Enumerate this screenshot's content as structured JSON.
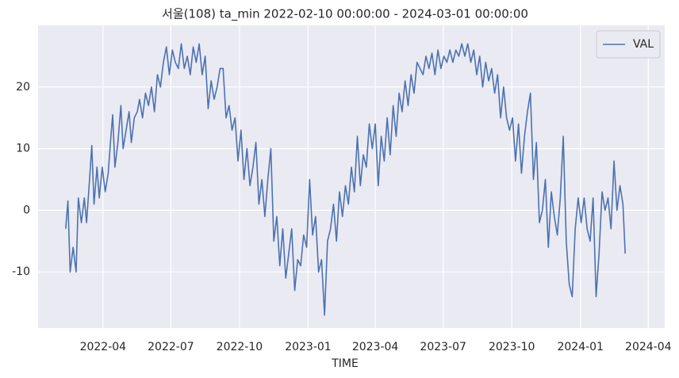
{
  "chart_data": {
    "type": "line",
    "title": "서울(108) ta_min 2022-02-10 00:00:00 - 2024-03-01 00:00:00",
    "x_label": "TIME",
    "x": [
      "2022-02-10",
      "2022-02-13",
      "2022-02-16",
      "2022-02-20",
      "2022-02-24",
      "2022-02-27",
      "2022-03-03",
      "2022-03-07",
      "2022-03-10",
      "2022-03-14",
      "2022-03-17",
      "2022-03-20",
      "2022-03-24",
      "2022-03-27",
      "2022-03-31",
      "2022-04-04",
      "2022-04-08",
      "2022-04-11",
      "2022-04-14",
      "2022-04-17",
      "2022-04-21",
      "2022-04-25",
      "2022-04-28",
      "2022-05-02",
      "2022-05-06",
      "2022-05-09",
      "2022-05-13",
      "2022-05-17",
      "2022-05-20",
      "2022-05-24",
      "2022-05-28",
      "2022-06-01",
      "2022-06-05",
      "2022-06-09",
      "2022-06-13",
      "2022-06-17",
      "2022-06-21",
      "2022-06-25",
      "2022-06-29",
      "2022-07-03",
      "2022-07-07",
      "2022-07-11",
      "2022-07-15",
      "2022-07-19",
      "2022-07-23",
      "2022-07-27",
      "2022-07-31",
      "2022-08-04",
      "2022-08-08",
      "2022-08-12",
      "2022-08-16",
      "2022-08-20",
      "2022-08-24",
      "2022-08-28",
      "2022-09-01",
      "2022-09-05",
      "2022-09-09",
      "2022-09-13",
      "2022-09-17",
      "2022-09-21",
      "2022-09-25",
      "2022-09-29",
      "2022-10-03",
      "2022-10-07",
      "2022-10-11",
      "2022-10-15",
      "2022-10-19",
      "2022-10-23",
      "2022-10-27",
      "2022-10-31",
      "2022-11-04",
      "2022-11-08",
      "2022-11-12",
      "2022-11-16",
      "2022-11-20",
      "2022-11-24",
      "2022-11-28",
      "2022-12-02",
      "2022-12-06",
      "2022-12-10",
      "2022-12-14",
      "2022-12-18",
      "2022-12-22",
      "2022-12-26",
      "2022-12-30",
      "2023-01-03",
      "2023-01-07",
      "2023-01-11",
      "2023-01-15",
      "2023-01-19",
      "2023-01-23",
      "2023-01-27",
      "2023-01-31",
      "2023-02-04",
      "2023-02-08",
      "2023-02-12",
      "2023-02-16",
      "2023-02-20",
      "2023-02-24",
      "2023-02-28",
      "2023-03-04",
      "2023-03-08",
      "2023-03-12",
      "2023-03-16",
      "2023-03-20",
      "2023-03-24",
      "2023-03-28",
      "2023-04-01",
      "2023-04-05",
      "2023-04-09",
      "2023-04-13",
      "2023-04-17",
      "2023-04-21",
      "2023-04-25",
      "2023-04-29",
      "2023-05-03",
      "2023-05-07",
      "2023-05-11",
      "2023-05-15",
      "2023-05-19",
      "2023-05-23",
      "2023-05-27",
      "2023-05-31",
      "2023-06-04",
      "2023-06-08",
      "2023-06-12",
      "2023-06-16",
      "2023-06-20",
      "2023-06-24",
      "2023-06-28",
      "2023-07-02",
      "2023-07-06",
      "2023-07-10",
      "2023-07-14",
      "2023-07-18",
      "2023-07-22",
      "2023-07-26",
      "2023-07-30",
      "2023-08-03",
      "2023-08-07",
      "2023-08-11",
      "2023-08-15",
      "2023-08-19",
      "2023-08-23",
      "2023-08-27",
      "2023-08-31",
      "2023-09-04",
      "2023-09-08",
      "2023-09-12",
      "2023-09-16",
      "2023-09-20",
      "2023-09-24",
      "2023-09-28",
      "2023-10-02",
      "2023-10-06",
      "2023-10-10",
      "2023-10-14",
      "2023-10-18",
      "2023-10-22",
      "2023-10-26",
      "2023-10-30",
      "2023-11-03",
      "2023-11-07",
      "2023-11-11",
      "2023-11-15",
      "2023-11-19",
      "2023-11-23",
      "2023-11-27",
      "2023-12-01",
      "2023-12-05",
      "2023-12-09",
      "2023-12-13",
      "2023-12-17",
      "2023-12-21",
      "2023-12-25",
      "2023-12-29",
      "2024-01-02",
      "2024-01-06",
      "2024-01-10",
      "2024-01-14",
      "2024-01-18",
      "2024-01-22",
      "2024-01-26",
      "2024-01-30",
      "2024-02-03",
      "2024-02-07",
      "2024-02-11",
      "2024-02-15",
      "2024-02-19",
      "2024-02-23",
      "2024-02-27",
      "2024-03-01"
    ],
    "series": [
      {
        "name": "VAL",
        "color": "#4c72b0",
        "values": [
          -3,
          1.5,
          -10,
          -6,
          -10,
          2,
          -2,
          2,
          -2,
          5,
          10.5,
          1,
          7,
          2,
          7,
          3,
          6,
          11,
          15.5,
          7,
          11,
          17,
          10,
          13,
          16,
          11,
          15,
          16,
          18,
          15,
          19,
          17,
          20,
          16,
          22,
          20,
          24,
          26.5,
          22,
          26,
          24,
          23,
          27,
          23,
          25,
          22,
          26.5,
          24,
          27,
          22,
          25,
          16.5,
          21,
          18,
          20,
          23,
          23,
          15,
          17,
          13,
          15,
          8,
          13,
          5,
          10,
          4,
          7,
          11,
          1,
          5,
          -1,
          5,
          10,
          -5,
          -1,
          -9,
          -3,
          -11,
          -7,
          -3,
          -13,
          -8,
          -9,
          -4,
          -6,
          5,
          -4,
          -1,
          -10,
          -8,
          -17,
          -5,
          -3,
          1,
          -5,
          3,
          -1,
          4,
          1,
          7,
          3,
          12,
          4,
          9,
          7,
          14,
          10,
          14,
          4,
          12,
          8,
          15,
          9,
          17,
          12,
          19,
          16,
          21,
          17,
          22,
          19,
          24,
          23,
          22,
          25,
          23,
          25.5,
          22,
          26,
          23,
          25,
          24,
          26,
          24,
          26,
          25,
          27,
          25,
          27,
          24,
          26,
          22,
          25,
          20,
          24,
          21,
          23,
          19,
          22,
          15,
          20,
          15,
          13,
          15,
          8,
          14,
          6,
          12,
          16,
          19,
          5,
          11,
          -2,
          0,
          5,
          -6,
          3,
          -1,
          -4,
          2,
          12,
          -5,
          -12,
          -14,
          -3,
          2,
          -2,
          2,
          -3,
          -5,
          2,
          -14,
          -7,
          3,
          0,
          2,
          -3,
          8,
          0,
          4,
          1,
          -7
        ]
      }
    ],
    "xlim": [
      "2022-01-04",
      "2024-04-23"
    ],
    "xticks": [
      "2022-04",
      "2022-07",
      "2022-10",
      "2023-01",
      "2023-04",
      "2023-07",
      "2023-10",
      "2024-01",
      "2024-04"
    ],
    "ylim": [
      -19.1,
      30
    ],
    "yticks": [
      -10,
      0,
      10,
      20
    ],
    "grid": true,
    "legend": "upper right"
  }
}
